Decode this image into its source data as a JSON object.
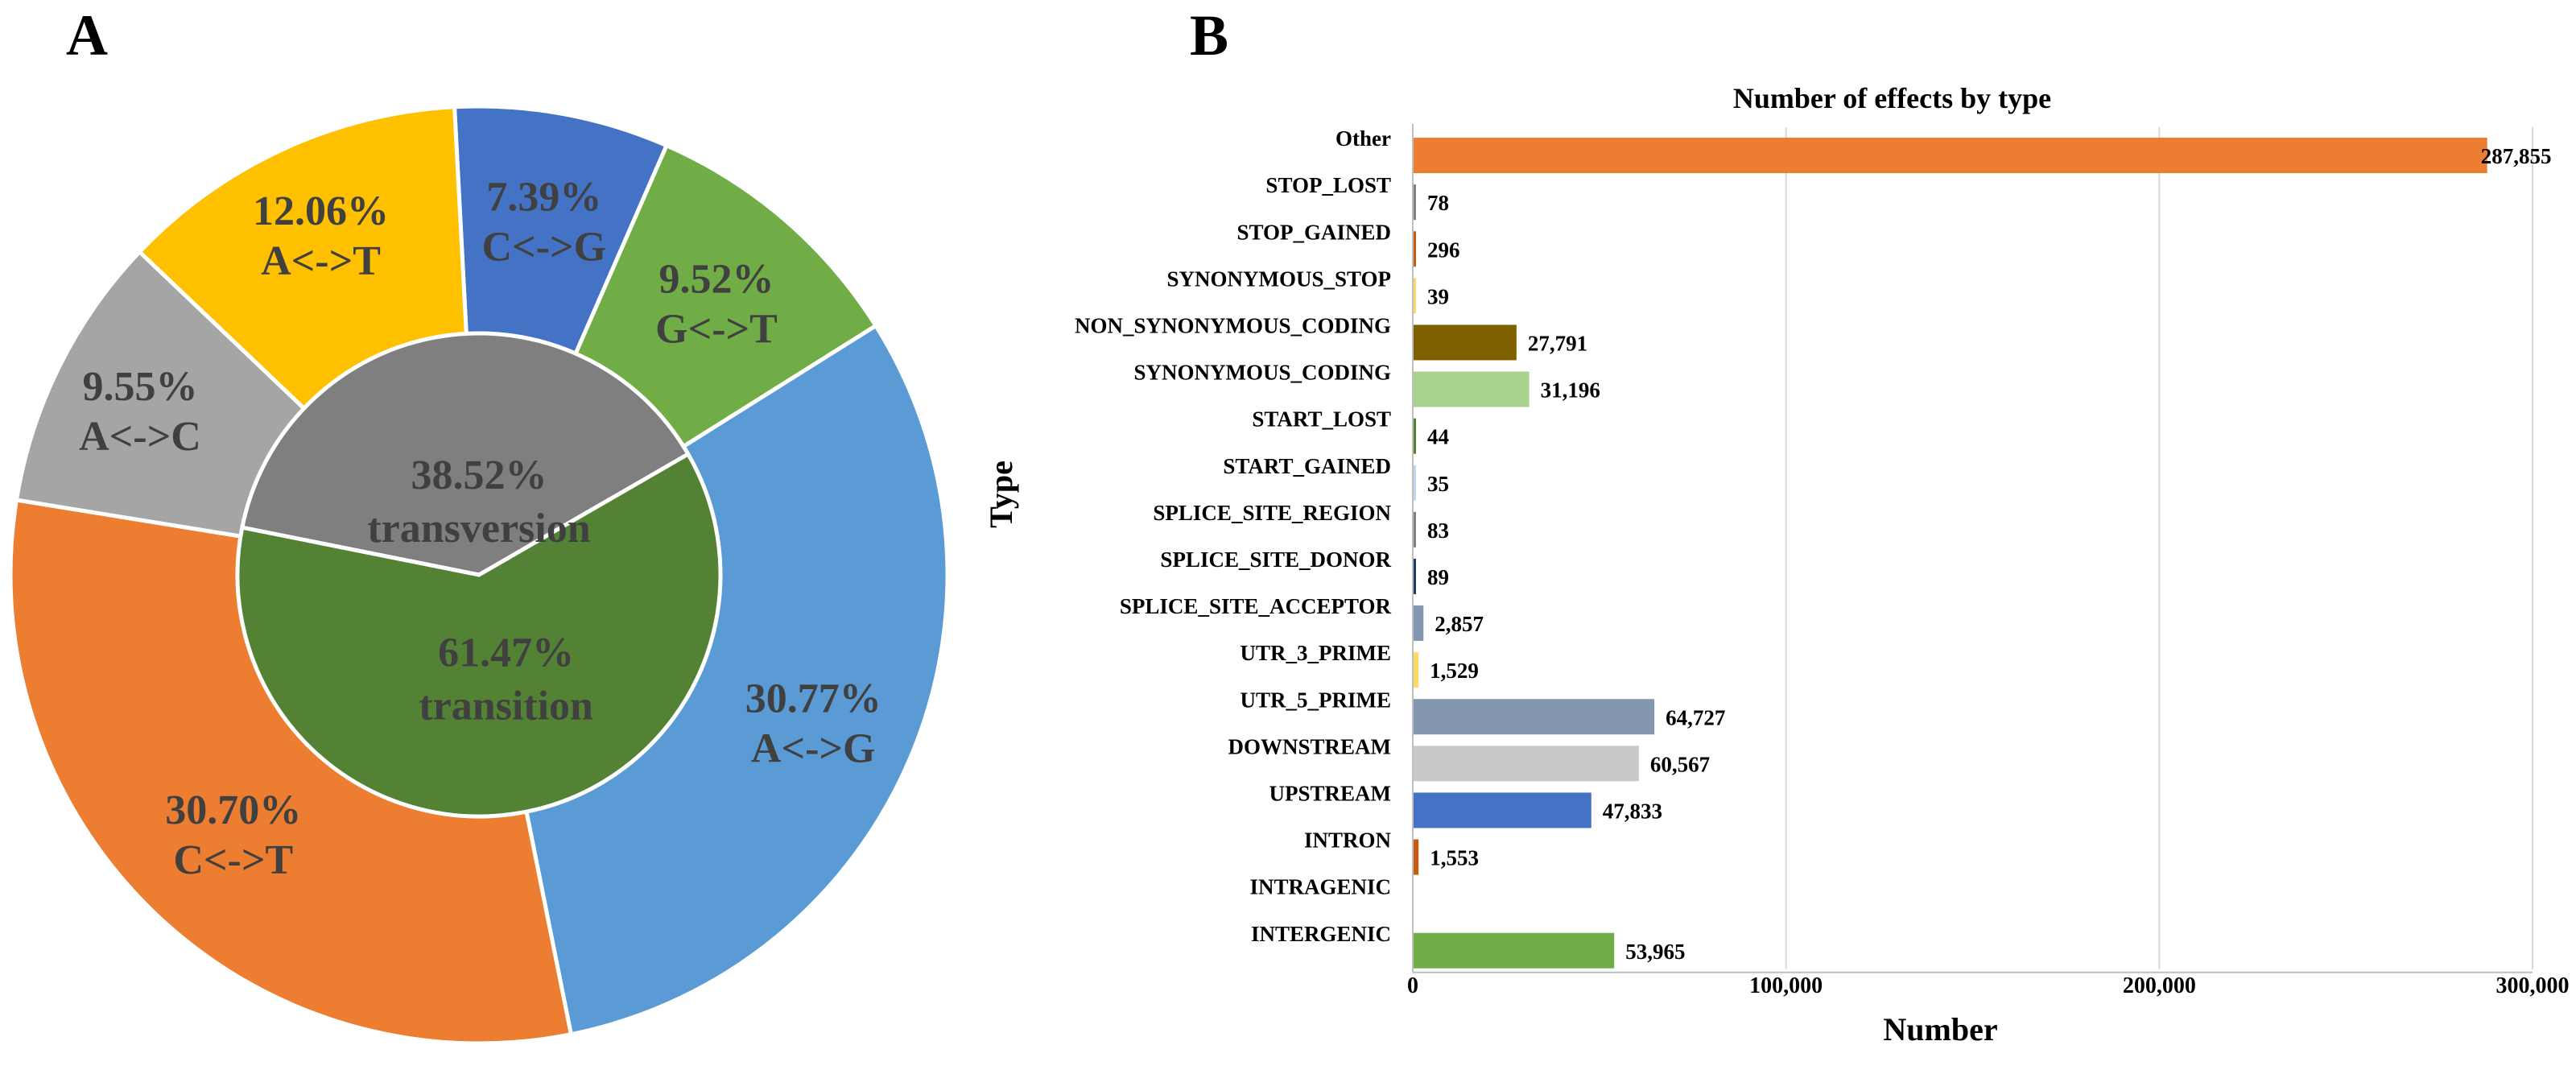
{
  "panels": {
    "a": "A",
    "b": "B"
  },
  "chart_data": [
    {
      "type": "pie",
      "subtype": "donut-with-center",
      "inner": [
        {
          "name": "transversion",
          "pct_label": "38.52%",
          "value": 38.52,
          "color": "#7f7f7f"
        },
        {
          "name": "transition",
          "pct_label": "61.47%",
          "value": 61.47,
          "color": "#548235"
        }
      ],
      "outer": [
        {
          "name": "C<->G",
          "pct_label": "7.39%",
          "value": 7.39,
          "color": "#4472c4",
          "group": "transversion"
        },
        {
          "name": "G<->T",
          "pct_label": "9.52%",
          "value": 9.52,
          "color": "#70ad47",
          "group": "transversion"
        },
        {
          "name": "A<->G",
          "pct_label": "30.77%",
          "value": 30.77,
          "color": "#5b9bd5",
          "group": "transition"
        },
        {
          "name": "C<->T",
          "pct_label": "30.70%",
          "value": 30.7,
          "color": "#ed7d31",
          "group": "transition"
        },
        {
          "name": "A<->C",
          "pct_label": "9.55%",
          "value": 9.55,
          "color": "#a5a5a5",
          "group": "transversion"
        },
        {
          "name": "A<->T",
          "pct_label": "12.06%",
          "value": 12.06,
          "color": "#ffc000",
          "group": "transversion"
        }
      ]
    },
    {
      "type": "bar",
      "orientation": "horizontal",
      "title": "Number of effects by type",
      "xlabel": "Number",
      "ylabel": "Type",
      "xlim": [
        0,
        300000
      ],
      "xticks": [
        {
          "value": 0,
          "label": "0"
        },
        {
          "value": 100000,
          "label": "100,000"
        },
        {
          "value": 200000,
          "label": "200,000"
        },
        {
          "value": 300000,
          "label": "300,000"
        }
      ],
      "categories": [
        {
          "name": "Other",
          "value": 287855,
          "label": "287,855",
          "color": "#ed7d31"
        },
        {
          "name": "STOP_LOST",
          "value": 78,
          "label": "78",
          "color": "#7f7f7f"
        },
        {
          "name": "STOP_GAINED",
          "value": 296,
          "label": "296",
          "color": "#c55a11"
        },
        {
          "name": "SYNONYMOUS_STOP",
          "value": 39,
          "label": "39",
          "color": "#ffd966"
        },
        {
          "name": "NON_SYNONYMOUS_CODING",
          "value": 27791,
          "label": "27,791",
          "color": "#7f6000"
        },
        {
          "name": "SYNONYMOUS_CODING",
          "value": 31196,
          "label": "31,196",
          "color": "#a9d18e"
        },
        {
          "name": "START_LOST",
          "value": 44,
          "label": "44",
          "color": "#548235"
        },
        {
          "name": "START_GAINED",
          "value": 35,
          "label": "35",
          "color": "#bdd7ee"
        },
        {
          "name": "SPLICE_SITE_REGION",
          "value": 83,
          "label": "83",
          "color": "#7f7f7f"
        },
        {
          "name": "SPLICE_SITE_DONOR",
          "value": 89,
          "label": "89",
          "color": "#1f3864"
        },
        {
          "name": "SPLICE_SITE_ACCEPTOR",
          "value": 2857,
          "label": "2,857",
          "color": "#8497b0"
        },
        {
          "name": "UTR_3_PRIME",
          "value": 1529,
          "label": "1,529",
          "color": "#ffd966"
        },
        {
          "name": "UTR_5_PRIME",
          "value": 64727,
          "label": "64,727",
          "color": "#8497b0"
        },
        {
          "name": "DOWNSTREAM",
          "value": 60567,
          "label": "60,567",
          "color": "#c9c9c9"
        },
        {
          "name": "UPSTREAM",
          "value": 47833,
          "label": "47,833",
          "color": "#4472c4"
        },
        {
          "name": "INTRON",
          "value": 1553,
          "label": "1,553",
          "color": "#c55a11"
        },
        {
          "name": "INTRAGENIC",
          "value": 0,
          "label": "",
          "color": "#70ad47"
        },
        {
          "name": "INTERGENIC",
          "value": 53965,
          "label": "53,965",
          "color": "#70ad47"
        }
      ]
    }
  ]
}
